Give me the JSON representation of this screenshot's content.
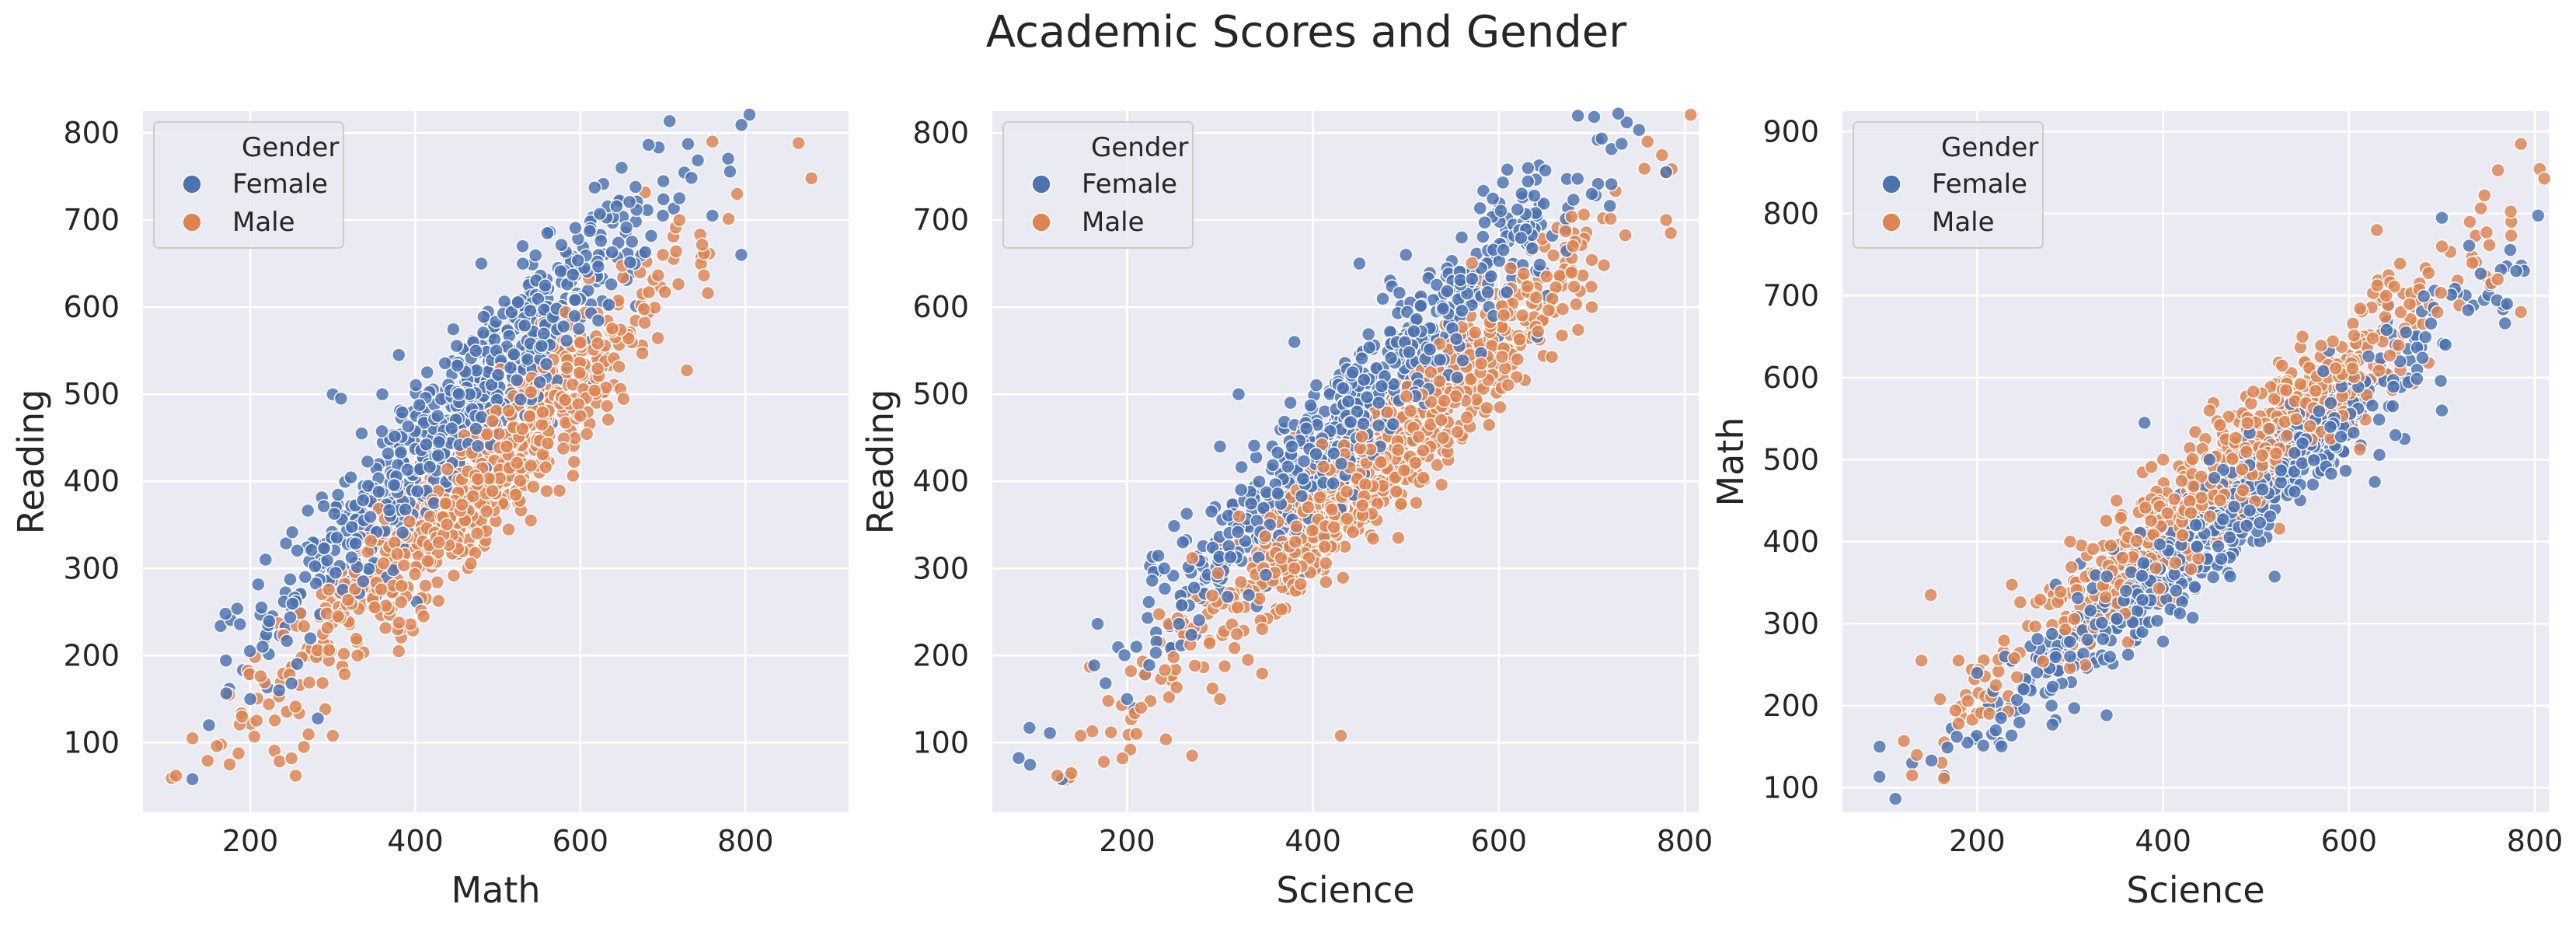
{
  "figure": {
    "title": "Academic Scores and Gender"
  },
  "colors": {
    "Female": "#4c72b0",
    "Male": "#dd8452",
    "background": "#eaeaf2",
    "grid": "#ffffff",
    "text": "#262626"
  },
  "chart_data": [
    {
      "type": "scatter",
      "xlabel": "Math",
      "ylabel": "Reading",
      "xlim": [
        70,
        925
      ],
      "ylim": [
        20,
        825
      ],
      "xticks": [
        200,
        400,
        600,
        800
      ],
      "yticks": [
        100,
        200,
        300,
        400,
        500,
        600,
        700,
        800
      ],
      "legend": {
        "title": "Gender",
        "entries": [
          "Female",
          "Male"
        ],
        "placement": "upper left"
      },
      "grid": true,
      "series": [
        {
          "name": "Female",
          "trend": {
            "slope": 1.0,
            "intercept": 22,
            "xmean": 460,
            "xsd": 115,
            "noise": 42
          },
          "points": [
            [
              130,
              58
            ],
            [
              150,
              120
            ],
            [
              170,
              248
            ],
            [
              200,
              150
            ],
            [
              215,
              210
            ],
            [
              235,
              160
            ],
            [
              250,
              168
            ],
            [
              300,
              500
            ],
            [
              310,
              495
            ],
            [
              335,
              455
            ],
            [
              360,
              500
            ],
            [
              380,
              545
            ],
            [
              480,
              650
            ],
            [
              530,
              670
            ],
            [
              560,
              685
            ],
            [
              650,
              760
            ],
            [
              700,
              705
            ],
            [
              720,
              725
            ],
            [
              760,
              705
            ],
            [
              795,
              660
            ]
          ]
        },
        {
          "name": "Male",
          "trend": {
            "slope": 0.95,
            "intercept": -50,
            "xmean": 480,
            "xsd": 120,
            "noise": 40
          },
          "points": [
            [
              110,
              62
            ],
            [
              130,
              105
            ],
            [
              175,
              75
            ],
            [
              190,
              130
            ],
            [
              205,
              107
            ],
            [
              250,
              82
            ],
            [
              255,
              62
            ],
            [
              265,
              95
            ],
            [
              300,
              108
            ],
            [
              330,
              200
            ],
            [
              380,
              205
            ],
            [
              410,
              245
            ],
            [
              540,
              355
            ],
            [
              600,
              475
            ],
            [
              700,
              660
            ],
            [
              720,
              700
            ],
            [
              760,
              790
            ],
            [
              790,
              730
            ],
            [
              880,
              748
            ]
          ]
        }
      ]
    },
    {
      "type": "scatter",
      "xlabel": "Science",
      "ylabel": "Reading",
      "xlim": [
        55,
        815
      ],
      "ylim": [
        20,
        825
      ],
      "xticks": [
        200,
        400,
        600,
        800
      ],
      "yticks": [
        100,
        200,
        300,
        400,
        500,
        600,
        700,
        800
      ],
      "legend": {
        "title": "Gender",
        "entries": [
          "Female",
          "Male"
        ],
        "placement": "upper left"
      },
      "grid": true,
      "series": [
        {
          "name": "Female",
          "trend": {
            "slope": 1.08,
            "intercept": -4,
            "xmean": 460,
            "xsd": 120,
            "noise": 38
          },
          "points": [
            [
              95,
              117
            ],
            [
              130,
              58
            ],
            [
              200,
              150
            ],
            [
              210,
              210
            ],
            [
              240,
              300
            ],
            [
              260,
              330
            ],
            [
              300,
              440
            ],
            [
              320,
              500
            ],
            [
              380,
              560
            ],
            [
              450,
              650
            ],
            [
              500,
              660
            ],
            [
              560,
              680
            ],
            [
              620,
              712
            ],
            [
              650,
              757
            ],
            [
              700,
              730
            ],
            [
              780,
              755
            ]
          ]
        },
        {
          "name": "Male",
          "trend": {
            "slope": 1.05,
            "intercept": -70,
            "xmean": 470,
            "xsd": 120,
            "noise": 38
          },
          "points": [
            [
              125,
              62
            ],
            [
              140,
              65
            ],
            [
              150,
              108
            ],
            [
              175,
              78
            ],
            [
              195,
              82
            ],
            [
              210,
              110
            ],
            [
              215,
              140
            ],
            [
              250,
              198
            ],
            [
              270,
              85
            ],
            [
              300,
              150
            ],
            [
              330,
              195
            ],
            [
              380,
              300
            ],
            [
              430,
              108
            ],
            [
              540,
              450
            ],
            [
              620,
              540
            ],
            [
              700,
              600
            ],
            [
              760,
              790
            ],
            [
              780,
              700
            ],
            [
              785,
              685
            ]
          ]
        }
      ]
    },
    {
      "type": "scatter",
      "xlabel": "Science",
      "ylabel": "Math",
      "xlim": [
        55,
        815
      ],
      "ylim": [
        70,
        925
      ],
      "xticks": [
        200,
        400,
        600,
        800
      ],
      "yticks": [
        100,
        200,
        300,
        400,
        500,
        600,
        700,
        800,
        900
      ],
      "legend": {
        "title": "Gender",
        "entries": [
          "Female",
          "Male"
        ],
        "placement": "upper left"
      },
      "grid": true,
      "series": [
        {
          "name": "Female",
          "trend": {
            "slope": 0.98,
            "intercept": -25,
            "xmean": 470,
            "xsd": 120,
            "noise": 32
          },
          "points": [
            [
              95,
              150
            ],
            [
              130,
              130
            ],
            [
              200,
              240
            ],
            [
              220,
              170
            ],
            [
              230,
              260
            ],
            [
              250,
              220
            ],
            [
              280,
              200
            ],
            [
              300,
              260
            ],
            [
              360,
              340
            ],
            [
              380,
              545
            ],
            [
              450,
              500
            ],
            [
              550,
              520
            ],
            [
              580,
              540
            ],
            [
              650,
              530
            ],
            [
              700,
              560
            ],
            [
              700,
              795
            ],
            [
              780,
              730
            ],
            [
              770,
              690
            ]
          ]
        },
        {
          "name": "Male",
          "trend": {
            "slope": 1.0,
            "intercept": 10,
            "xmean": 470,
            "xsd": 120,
            "noise": 35
          },
          "points": [
            [
              130,
              115
            ],
            [
              135,
              140
            ],
            [
              140,
              255
            ],
            [
              150,
              335
            ],
            [
              160,
              208
            ],
            [
              180,
              255
            ],
            [
              180,
              178
            ],
            [
              220,
              225
            ],
            [
              240,
              258
            ],
            [
              300,
              400
            ],
            [
              350,
              450
            ],
            [
              400,
              500
            ],
            [
              450,
              560
            ],
            [
              550,
              650
            ],
            [
              630,
              780
            ],
            [
              640,
              700
            ],
            [
              700,
              760
            ],
            [
              730,
              790
            ],
            [
              760,
              720
            ],
            [
              785,
              680
            ],
            [
              785,
              885
            ]
          ]
        }
      ]
    }
  ]
}
